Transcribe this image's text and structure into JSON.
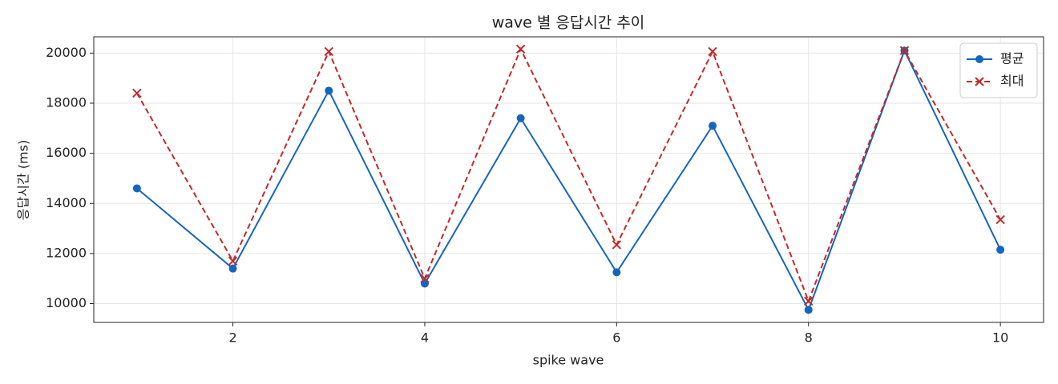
{
  "chart_data": {
    "type": "line",
    "title": "wave 별 응답시간 추이",
    "x_label": "spike wave",
    "y_label": "응답시간 (ms)",
    "x": [
      1,
      2,
      3,
      4,
      5,
      6,
      7,
      8,
      9,
      10
    ],
    "series": [
      {
        "name": "평균",
        "color": "#1565c0",
        "marker": "circle",
        "dash": "solid",
        "values": [
          14600,
          11400,
          18500,
          10800,
          17400,
          11250,
          17100,
          9750,
          20100,
          12150
        ]
      },
      {
        "name": "최대",
        "color": "#c62828",
        "marker": "x",
        "dash": "dashed",
        "values": [
          18400,
          11700,
          20060,
          11000,
          20160,
          12350,
          20060,
          10100,
          20100,
          13350
        ]
      }
    ],
    "xlim": [
      0.55,
      10.45
    ],
    "xticks": [
      2,
      4,
      6,
      8,
      10
    ],
    "ylim": [
      9250,
      20650
    ],
    "yticks": [
      10000,
      12000,
      14000,
      16000,
      18000,
      20000
    ],
    "grid": true,
    "legend": "upper right"
  }
}
